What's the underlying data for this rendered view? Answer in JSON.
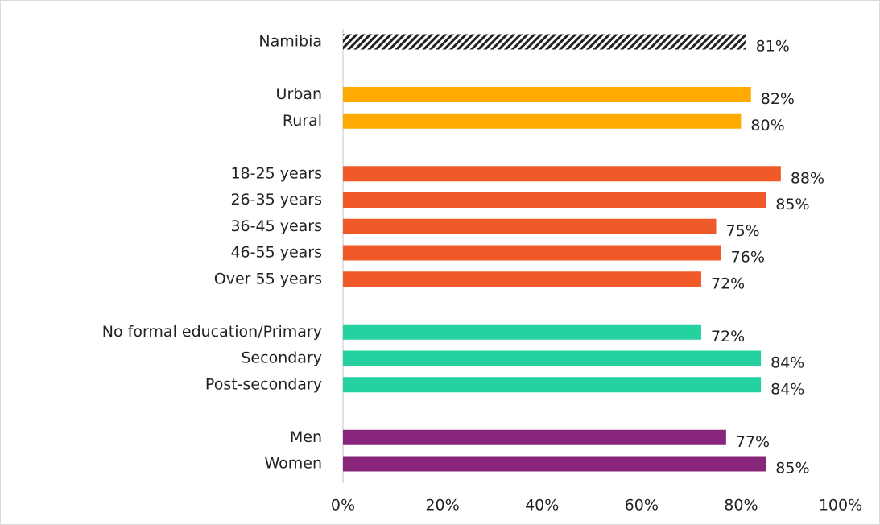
{
  "chart_data": {
    "type": "barh",
    "categories": [
      "Namibia",
      null,
      "Urban",
      "Rural",
      null,
      "18-25 years",
      "26-35 years",
      "36-45 years",
      "46-55 years",
      "Over 55 years",
      null,
      "No formal education/Primary",
      "Secondary",
      "Post-secondary",
      null,
      "Men",
      "Women"
    ],
    "values": [
      81,
      null,
      82,
      80,
      null,
      88,
      85,
      75,
      76,
      72,
      null,
      72,
      84,
      84,
      null,
      77,
      85
    ],
    "value_labels": [
      "81%",
      null,
      "82%",
      "80%",
      null,
      "88%",
      "85%",
      "75%",
      "76%",
      "72%",
      null,
      "72%",
      "84%",
      "84%",
      null,
      "77%",
      "85%"
    ],
    "colors": [
      "#222222",
      null,
      "#FFAA00",
      "#FFAA00",
      null,
      "#F05A28",
      "#F05A28",
      "#F05A28",
      "#F05A28",
      "#F05A28",
      null,
      "#26D1A0",
      "#26D1A0",
      "#26D1A0",
      null,
      "#86257A",
      "#86257A"
    ],
    "hatched": [
      true,
      null,
      false,
      false,
      null,
      false,
      false,
      false,
      false,
      false,
      null,
      false,
      false,
      false,
      null,
      false,
      false
    ],
    "xlim": [
      0,
      100
    ],
    "xticks": [
      {
        "value": 0,
        "label": "0%"
      },
      {
        "value": 20,
        "label": "20%"
      },
      {
        "value": 40,
        "label": "40%"
      },
      {
        "value": 60,
        "label": "60%"
      },
      {
        "value": 80,
        "label": "80%"
      },
      {
        "value": 100,
        "label": "100%"
      }
    ]
  }
}
